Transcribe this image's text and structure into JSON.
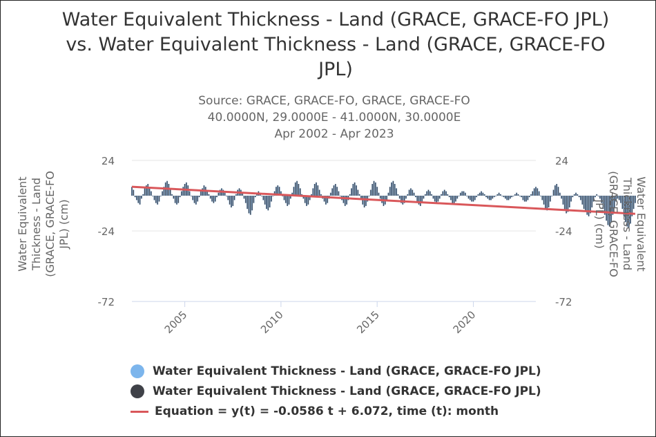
{
  "title_lines": [
    "Water Equivalent Thickness - Land (GRACE, GRACE-FO JPL)",
    "vs. Water Equivalent Thickness - Land (GRACE, GRACE-FO",
    "JPL)"
  ],
  "subtitle_lines": [
    "Source: GRACE, GRACE-FO, GRACE, GRACE-FO",
    "40.0000N, 29.0000E - 41.0000N, 30.0000E",
    "Apr 2002 - Apr 2023"
  ],
  "colors": {
    "series1": "#7cb5ec",
    "series2": "#3f4148",
    "trend": "#d9575a",
    "grid": "#e6e6e6",
    "axis_text": "#666666"
  },
  "chart_data": {
    "type": "bar",
    "x_range": [
      "2002-04",
      "2023-04"
    ],
    "x_ticks": [
      "2005",
      "2010",
      "2015",
      "2020"
    ],
    "y_ticks": [
      "24",
      "-24",
      "-72"
    ],
    "ylim": [
      -72,
      24
    ],
    "ylabel_left": "Water Equivalent Thickness - Land (GRACE, GRACE-FO JPL) (cm)",
    "ylabel_right": "Water Equivalent Thickness - Land (GRACE, GRACE-FO JPL) (cm)",
    "x_start": "2002-04",
    "series": [
      {
        "name": "Water Equivalent Thickness - Land (GRACE, GRACE-FO JPL)",
        "color": "#7cb5ec",
        "values": [
          6,
          4,
          -1,
          -3,
          -5,
          -6,
          -2,
          1,
          5,
          7,
          8,
          6,
          3,
          0,
          -3,
          -5,
          -6,
          -4,
          0,
          3,
          6,
          9,
          10,
          8,
          4,
          1,
          -2,
          -5,
          -6,
          -5,
          -1,
          3,
          6,
          8,
          9,
          7,
          3,
          0,
          -3,
          -5,
          -6,
          -4,
          -1,
          3,
          5,
          7,
          6,
          4,
          1,
          -2,
          -4,
          -5,
          -4,
          -1,
          2,
          4,
          5,
          4,
          2,
          0,
          -3,
          -6,
          -8,
          -7,
          -3,
          1,
          4,
          5,
          4,
          2,
          -2,
          -5,
          -9,
          -12,
          -13,
          -10,
          -5,
          -1,
          2,
          3,
          2,
          0,
          -3,
          -6,
          -9,
          -10,
          -8,
          -4,
          0,
          3,
          6,
          7,
          6,
          3,
          0,
          -3,
          -5,
          -7,
          -6,
          -2,
          2,
          6,
          9,
          10,
          8,
          5,
          1,
          -2,
          -5,
          -7,
          -6,
          -3,
          1,
          5,
          8,
          9,
          7,
          4,
          1,
          -2,
          -4,
          -6,
          -5,
          -2,
          2,
          5,
          7,
          8,
          6,
          3,
          0,
          -3,
          -5,
          -7,
          -6,
          -3,
          1,
          5,
          8,
          9,
          7,
          4,
          1,
          -3,
          -6,
          -8,
          -7,
          -4,
          0,
          4,
          8,
          10,
          9,
          6,
          2,
          -2,
          -5,
          -7,
          -6,
          -3,
          2,
          6,
          9,
          10,
          8,
          5,
          1,
          -2,
          -5,
          -6,
          -5,
          -2,
          1,
          4,
          5,
          4,
          2,
          -1,
          -4,
          -6,
          -7,
          -5,
          -2,
          1,
          3,
          4,
          3,
          1,
          -2,
          -4,
          -5,
          -4,
          -2,
          1,
          3,
          4,
          3,
          1,
          -1,
          -3,
          -5,
          -5,
          -4,
          -2,
          0,
          2,
          3,
          3,
          2,
          0,
          -2,
          -3,
          -4,
          -4,
          -3,
          -1,
          1,
          2,
          3,
          2,
          1,
          -1,
          -2,
          -3,
          -3,
          -2,
          -1,
          0,
          1,
          2,
          1,
          0,
          -1,
          -2,
          -3,
          -3,
          -2,
          -1,
          0,
          1,
          2,
          1,
          0,
          -1,
          -3,
          -4,
          -4,
          -3,
          -1,
          1,
          3,
          5,
          6,
          5,
          3,
          0,
          -3,
          -6,
          -9,
          -10,
          -8,
          -4,
          0,
          4,
          7,
          8,
          6,
          2,
          -2,
          -6,
          -10,
          -12,
          -11,
          -8,
          -4,
          -1,
          1,
          2,
          1,
          -1,
          -3,
          -6,
          -9,
          -11,
          -13,
          -14,
          -12,
          -8,
          -4,
          -1,
          1,
          0,
          -2,
          -5,
          -9,
          -13,
          -17,
          -20,
          -21,
          -18,
          -13,
          -8,
          -4,
          -2,
          -3,
          -5,
          -9,
          -14,
          -18,
          -21,
          -22,
          -19,
          -14,
          -9,
          -5
        ]
      },
      {
        "name": "Water Equivalent Thickness - Land (GRACE, GRACE-FO JPL)",
        "color": "#3f4148",
        "values": [
          6,
          4,
          -1,
          -3,
          -5,
          -6,
          -2,
          1,
          5,
          7,
          8,
          6,
          3,
          0,
          -3,
          -5,
          -6,
          -4,
          0,
          3,
          6,
          9,
          10,
          8,
          4,
          1,
          -2,
          -5,
          -6,
          -5,
          -1,
          3,
          6,
          8,
          9,
          7,
          3,
          0,
          -3,
          -5,
          -6,
          -4,
          -1,
          3,
          5,
          7,
          6,
          4,
          1,
          -2,
          -4,
          -5,
          -4,
          -1,
          2,
          4,
          5,
          4,
          2,
          0,
          -3,
          -6,
          -8,
          -7,
          -3,
          1,
          4,
          5,
          4,
          2,
          -2,
          -5,
          -9,
          -12,
          -13,
          -10,
          -5,
          -1,
          2,
          3,
          2,
          0,
          -3,
          -6,
          -9,
          -10,
          -8,
          -4,
          0,
          3,
          6,
          7,
          6,
          3,
          0,
          -3,
          -5,
          -7,
          -6,
          -2,
          2,
          6,
          9,
          10,
          8,
          5,
          1,
          -2,
          -5,
          -7,
          -6,
          -3,
          1,
          5,
          8,
          9,
          7,
          4,
          1,
          -2,
          -4,
          -6,
          -5,
          -2,
          2,
          5,
          7,
          8,
          6,
          3,
          0,
          -3,
          -5,
          -7,
          -6,
          -3,
          1,
          5,
          8,
          9,
          7,
          4,
          1,
          -3,
          -6,
          -8,
          -7,
          -4,
          0,
          4,
          8,
          10,
          9,
          6,
          2,
          -2,
          -5,
          -7,
          -6,
          -3,
          2,
          6,
          9,
          10,
          8,
          5,
          1,
          -2,
          -5,
          -6,
          -5,
          -2,
          1,
          4,
          5,
          4,
          2,
          -1,
          -4,
          -6,
          -7,
          -5,
          -2,
          1,
          3,
          4,
          3,
          1,
          -2,
          -4,
          -5,
          -4,
          -2,
          1,
          3,
          4,
          3,
          1,
          -1,
          -3,
          -5,
          -5,
          -4,
          -2,
          0,
          2,
          3,
          3,
          2,
          0,
          -2,
          -3,
          -4,
          -4,
          -3,
          -1,
          1,
          2,
          3,
          2,
          1,
          -1,
          -2,
          -3,
          -3,
          -2,
          -1,
          0,
          1,
          2,
          1,
          0,
          -1,
          -2,
          -3,
          -3,
          -2,
          -1,
          0,
          1,
          2,
          1,
          0,
          -1,
          -3,
          -4,
          -4,
          -3,
          -1,
          1,
          3,
          5,
          6,
          5,
          3,
          0,
          -3,
          -6,
          -9,
          -10,
          -8,
          -4,
          0,
          4,
          7,
          8,
          6,
          2,
          -2,
          -6,
          -10,
          -12,
          -11,
          -8,
          -4,
          -1,
          1,
          2,
          1,
          -1,
          -3,
          -6,
          -9,
          -11,
          -13,
          -14,
          -12,
          -8,
          -4,
          -1,
          1,
          0,
          -2,
          -5,
          -9,
          -13,
          -17,
          -20,
          -21,
          -18,
          -13,
          -8,
          -4,
          -2,
          -3,
          -5,
          -9,
          -14,
          -18,
          -21,
          -22,
          -19,
          -14,
          -9,
          -5
        ]
      }
    ],
    "trend": {
      "slope_per_month": -0.0586,
      "intercept": 6.072
    },
    "legend": [
      {
        "label": "Water Equivalent Thickness - Land (GRACE, GRACE-FO JPL)",
        "marker": "dot",
        "color": "#7cb5ec"
      },
      {
        "label": "Water Equivalent Thickness - Land (GRACE, GRACE-FO JPL)",
        "marker": "dot",
        "color": "#3f4148"
      },
      {
        "label": "Equation = y(t) = -0.0586 t + 6.072, time (t): month",
        "marker": "line",
        "color": "#d9575a"
      }
    ],
    "legend_position": "bottom",
    "grid": true
  }
}
